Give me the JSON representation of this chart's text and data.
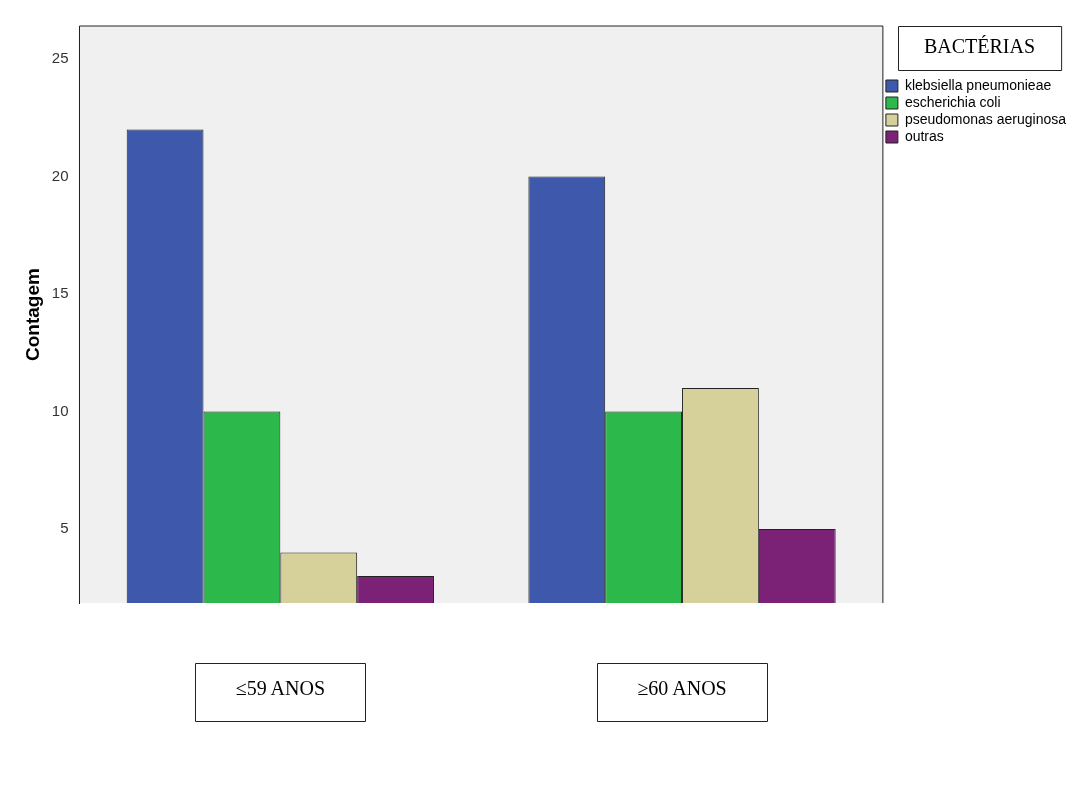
{
  "chart_data": {
    "type": "bar",
    "ylabel": "Contagem",
    "legend_title": "BACTÉRIAS",
    "categories": [
      "≤59 ANOS",
      "≥60 ANOS"
    ],
    "series": [
      {
        "name": "klebsiella pneumonieae",
        "color": "#3e58ac",
        "values": [
          22,
          20
        ]
      },
      {
        "name": "escherichia coli",
        "color": "#2db84c",
        "values": [
          10,
          10
        ]
      },
      {
        "name": "pseudomonas aeruginosa",
        "color": "#d6d19a",
        "values": [
          4,
          11
        ]
      },
      {
        "name": "outras",
        "color": "#7b2176",
        "values": [
          3,
          5
        ]
      }
    ],
    "ylim": [
      1.85,
      26.4
    ],
    "yticks": [
      5,
      10,
      15,
      20,
      25
    ],
    "grid": false,
    "legend": "top right"
  }
}
